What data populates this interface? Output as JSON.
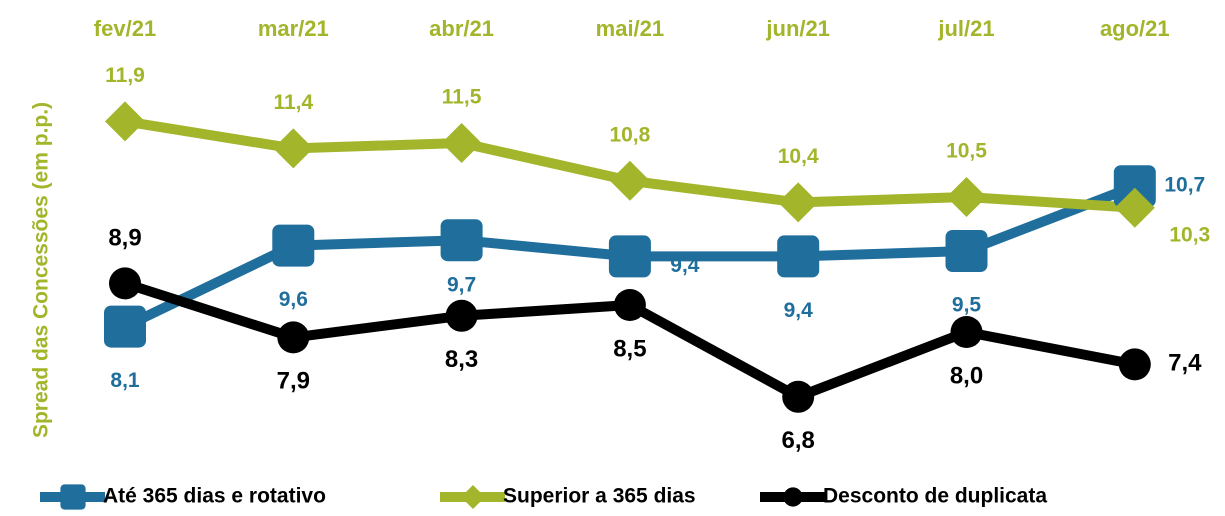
{
  "chart_data": {
    "type": "line",
    "y_label": "Spread das Concessões (em p.p.)",
    "categories": [
      "fev/21",
      "mar/21",
      "abr/21",
      "mai/21",
      "jun/21",
      "jul/21",
      "ago/21"
    ],
    "ylim": [
      6,
      12
    ],
    "series": [
      {
        "name": "Até 365 dias e rotativo",
        "color": "#1f6e9c",
        "marker": "square",
        "values": [
          8.1,
          9.6,
          9.7,
          9.4,
          9.4,
          9.5,
          10.7
        ],
        "value_labels": [
          "8,1",
          "9,6",
          "9,7",
          "9,4",
          "9,4",
          "9,5",
          "10,7"
        ]
      },
      {
        "name": "Superior a 365 dias",
        "color": "#a3b52a",
        "marker": "diamond",
        "values": [
          11.9,
          11.4,
          11.5,
          10.8,
          10.4,
          10.5,
          10.3
        ],
        "value_labels": [
          "11,9",
          "11,4",
          "11,5",
          "10,8",
          "10,4",
          "10,5",
          "10,3"
        ]
      },
      {
        "name": "Desconto de duplicata",
        "color": "#000000",
        "marker": "circle",
        "values": [
          8.9,
          7.9,
          8.3,
          8.5,
          6.8,
          8.0,
          7.4
        ],
        "value_labels": [
          "8,9",
          "7,9",
          "8,3",
          "8,5",
          "6,8",
          "8,0",
          "7,4"
        ]
      }
    ]
  }
}
